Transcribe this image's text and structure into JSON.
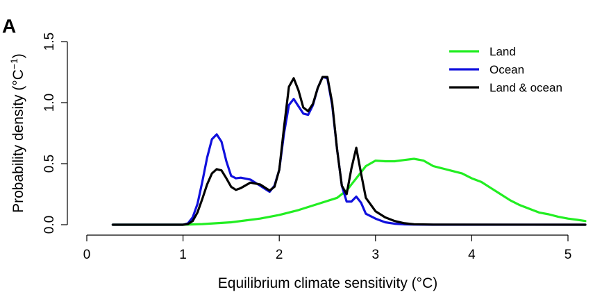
{
  "panel_label": "A",
  "chart_data": {
    "type": "line",
    "xlabel": "Equilibrium climate sensitivity (°C)",
    "ylabel_main": "Probability density (°C",
    "ylabel_sup": "−1",
    "ylabel_end": ")",
    "xlim": [
      0,
      5.2
    ],
    "ylim": [
      0,
      1.5
    ],
    "xticks": [
      0,
      1,
      2,
      3,
      4,
      5
    ],
    "xtick_labels": [
      "0",
      "1",
      "2",
      "3",
      "4",
      "5"
    ],
    "yticks": [
      0,
      0.5,
      1,
      1.5
    ],
    "ytick_labels": [
      "0.0",
      "0.5",
      "1.0",
      "1.5"
    ],
    "grid": false,
    "legend_position": "top-right",
    "series": [
      {
        "name": "Land",
        "color": "#22ee22",
        "x": [
          0.27,
          1.0,
          1.2,
          1.5,
          1.8,
          2.0,
          2.2,
          2.4,
          2.6,
          2.7,
          2.8,
          2.9,
          3.0,
          3.1,
          3.2,
          3.3,
          3.4,
          3.5,
          3.6,
          3.7,
          3.8,
          3.9,
          4.0,
          4.1,
          4.2,
          4.3,
          4.4,
          4.5,
          4.6,
          4.7,
          4.8,
          4.9,
          5.0,
          5.1,
          5.2
        ],
        "y": [
          0.0,
          0.0,
          0.005,
          0.02,
          0.05,
          0.08,
          0.12,
          0.17,
          0.22,
          0.28,
          0.38,
          0.48,
          0.525,
          0.52,
          0.52,
          0.53,
          0.54,
          0.525,
          0.48,
          0.46,
          0.44,
          0.42,
          0.38,
          0.35,
          0.3,
          0.25,
          0.2,
          0.16,
          0.13,
          0.1,
          0.085,
          0.065,
          0.05,
          0.04,
          0.03
        ]
      },
      {
        "name": "Ocean",
        "color": "#1010dd",
        "x": [
          0.27,
          1.0,
          1.05,
          1.1,
          1.15,
          1.2,
          1.25,
          1.3,
          1.35,
          1.4,
          1.45,
          1.5,
          1.55,
          1.6,
          1.7,
          1.8,
          1.9,
          1.95,
          2.0,
          2.05,
          2.1,
          2.15,
          2.2,
          2.25,
          2.3,
          2.35,
          2.4,
          2.45,
          2.5,
          2.55,
          2.6,
          2.65,
          2.7,
          2.75,
          2.8,
          2.85,
          2.9,
          3.0,
          3.1,
          3.2,
          3.3,
          3.4,
          3.6,
          5.2
        ],
        "y": [
          0.0,
          0.0,
          0.01,
          0.06,
          0.17,
          0.35,
          0.55,
          0.7,
          0.74,
          0.68,
          0.52,
          0.4,
          0.38,
          0.385,
          0.37,
          0.32,
          0.27,
          0.32,
          0.45,
          0.75,
          0.98,
          1.03,
          0.97,
          0.91,
          0.9,
          0.98,
          1.12,
          1.21,
          1.2,
          0.98,
          0.62,
          0.32,
          0.19,
          0.19,
          0.23,
          0.18,
          0.09,
          0.05,
          0.02,
          0.008,
          0.003,
          0.001,
          0.0,
          0.0
        ]
      },
      {
        "name": "Land & ocean",
        "color": "#000000",
        "x": [
          0.27,
          1.0,
          1.05,
          1.1,
          1.15,
          1.2,
          1.25,
          1.3,
          1.35,
          1.4,
          1.45,
          1.5,
          1.55,
          1.6,
          1.7,
          1.8,
          1.9,
          1.95,
          2.0,
          2.05,
          2.1,
          2.15,
          2.2,
          2.25,
          2.3,
          2.35,
          2.4,
          2.45,
          2.5,
          2.55,
          2.6,
          2.65,
          2.7,
          2.75,
          2.8,
          2.85,
          2.9,
          3.0,
          3.1,
          3.2,
          3.3,
          3.4,
          3.6,
          5.2
        ],
        "y": [
          0.0,
          0.0,
          0.005,
          0.03,
          0.1,
          0.21,
          0.33,
          0.42,
          0.455,
          0.445,
          0.38,
          0.31,
          0.285,
          0.3,
          0.345,
          0.33,
          0.28,
          0.31,
          0.45,
          0.8,
          1.13,
          1.2,
          1.1,
          0.96,
          0.93,
          0.99,
          1.12,
          1.21,
          1.21,
          1.0,
          0.62,
          0.32,
          0.25,
          0.46,
          0.63,
          0.42,
          0.22,
          0.11,
          0.06,
          0.03,
          0.012,
          0.004,
          0.001,
          0.0
        ]
      }
    ]
  }
}
